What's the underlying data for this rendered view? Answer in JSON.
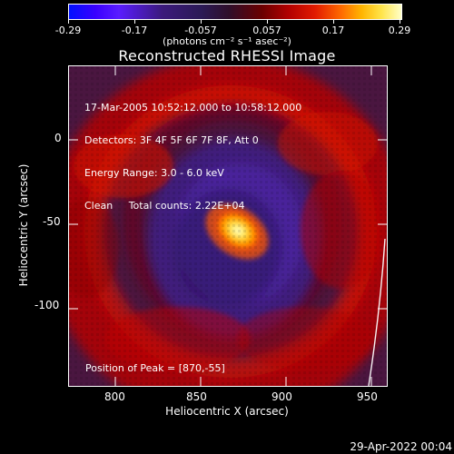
{
  "colorbar": {
    "ticks": [
      "-0.29",
      "-0.17",
      "-0.057",
      "0.057",
      "0.17",
      "0.29"
    ],
    "units": "(photons cm⁻² s⁻¹ asec⁻²)"
  },
  "title": "Reconstructed RHESSI Image",
  "info": {
    "line1": "17-Mar-2005 10:52:12.000 to 10:58:12.000",
    "line2": "Detectors: 3F 4F 5F 6F 7F 8F, Att 0",
    "line3": "Energy Range: 3.0 - 6.0 keV",
    "line4": "Clean     Total counts: 2.22E+04"
  },
  "peak": "Position of Peak = [870,-55]",
  "axes": {
    "xlabel": "Heliocentric X (arcsec)",
    "ylabel": "Heliocentric Y (arcsec)",
    "xticks": [
      "800",
      "850",
      "900",
      "950"
    ],
    "yticks": [
      "0",
      "-50",
      "-100"
    ]
  },
  "date": "29-Apr-2022 00:04"
}
